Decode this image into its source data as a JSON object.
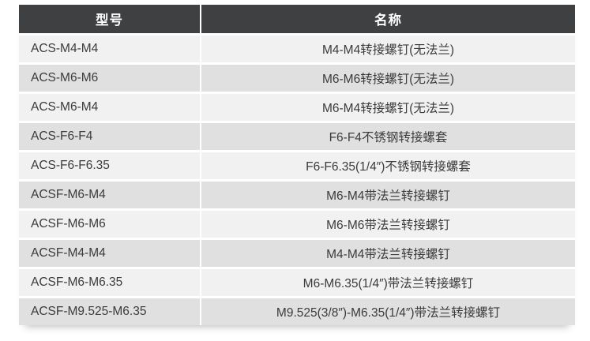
{
  "colors": {
    "header_bg": "#3e4042",
    "header_text": "#ffffff",
    "row_light": "#f1f1f2",
    "row_dark": "#e0e0e1",
    "cell_text": "#3b3b3b"
  },
  "table": {
    "columns": [
      {
        "label": "型号"
      },
      {
        "label": "名称"
      }
    ],
    "rows": [
      {
        "model": "ACS-M4-M4",
        "name": "M4-M4转接螺钉(无法兰)"
      },
      {
        "model": "ACS-M6-M6",
        "name": "M6-M6转接螺钉(无法兰)"
      },
      {
        "model": "ACS-M6-M4",
        "name": "M6-M4转接螺钉(无法兰)"
      },
      {
        "model": "ACS-F6-F4",
        "name": "F6-F4不锈钢转接螺套"
      },
      {
        "model": "ACS-F6-F6.35",
        "name": "F6-F6.35(1/4″)不锈钢转接螺套"
      },
      {
        "model": "ACSF-M6-M4",
        "name": "M6-M4带法兰转接螺钉"
      },
      {
        "model": "ACSF-M6-M6",
        "name": "M6-M6带法兰转接螺钉"
      },
      {
        "model": "ACSF-M4-M4",
        "name": "M4-M4带法兰转接螺钉"
      },
      {
        "model": "ACSF-M6-M6.35",
        "name": "M6-M6.35(1/4″)带法兰转接螺钉"
      },
      {
        "model": "ACSF-M9.525-M6.35",
        "name": "M9.525(3/8″)-M6.35(1/4″)带法兰转接螺钉"
      }
    ]
  }
}
